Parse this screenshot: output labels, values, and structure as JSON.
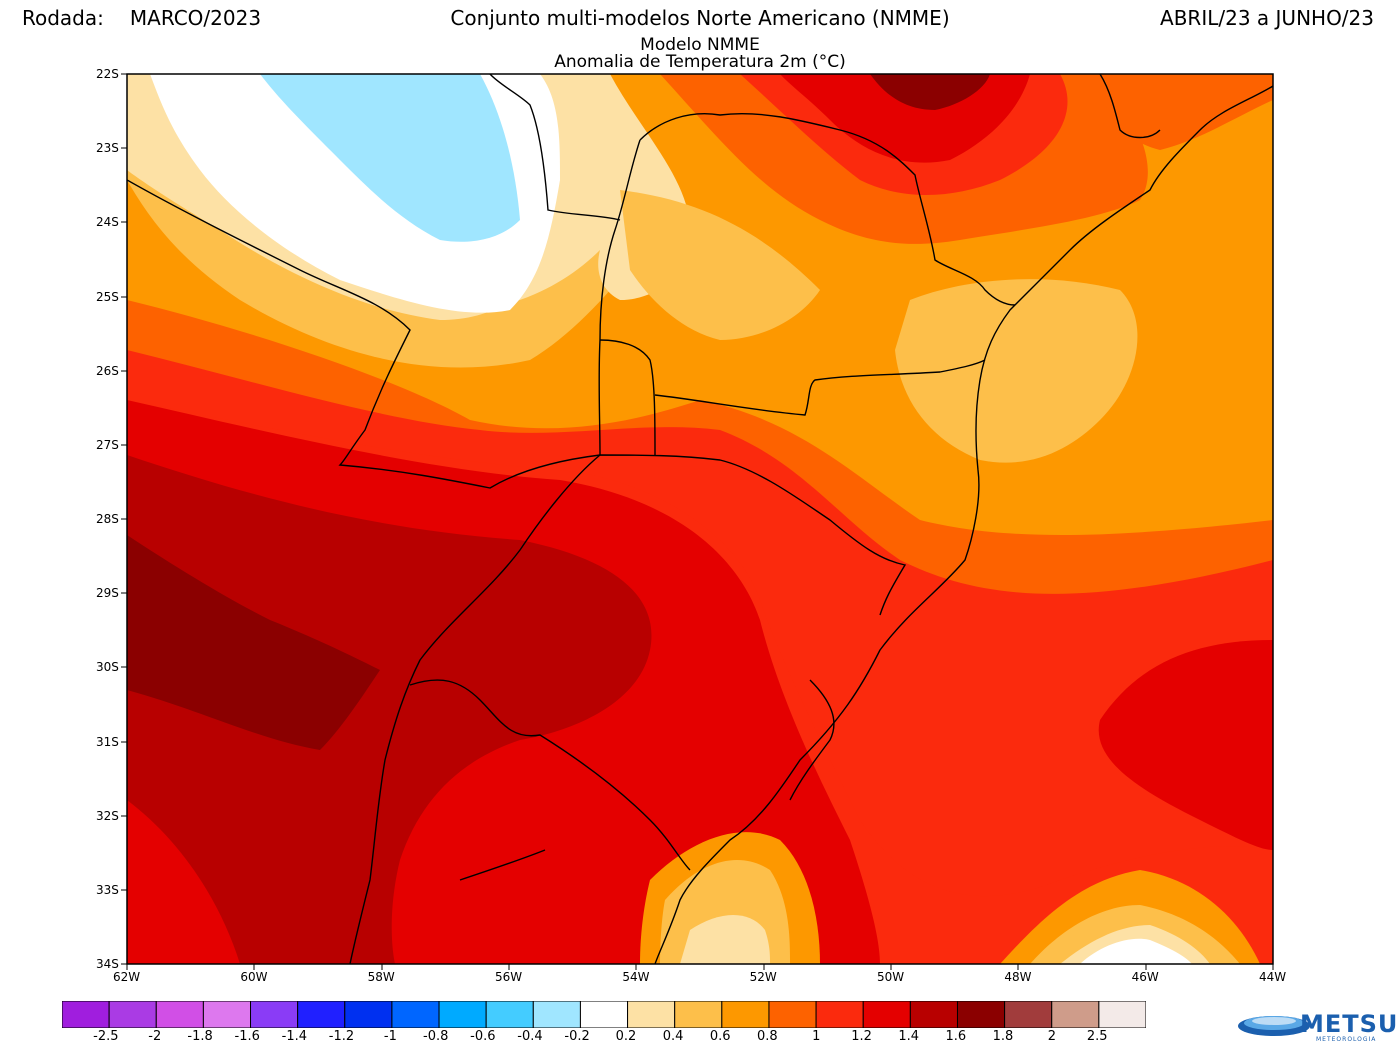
{
  "header": {
    "run_label": "Rodada:",
    "run_value": "MARCO/2023",
    "title": "Conjunto multi-modelos Norte Americano (NMME)",
    "period": "ABRIL/23 a JUNHO/23",
    "subtitle1": "Modelo NMME",
    "subtitle2": "Anomalia de Temperatura 2m (°C)"
  },
  "map": {
    "lat_labels": [
      "22S",
      "23S",
      "24S",
      "25S",
      "26S",
      "27S",
      "28S",
      "29S",
      "30S",
      "31S",
      "32S",
      "33S",
      "34S"
    ],
    "lon_labels": [
      "62W",
      "60W",
      "58W",
      "56W",
      "54W",
      "52W",
      "50W",
      "48W",
      "46W",
      "44W"
    ]
  },
  "legend": {
    "colors": [
      "#a01ede",
      "#aa3be4",
      "#d14fe6",
      "#dd78ee",
      "#8a3cf6",
      "#2020ff",
      "#0030f0",
      "#0066ff",
      "#00aaff",
      "#44ccff",
      "#a0e6ff",
      "#ffffff",
      "#fde1a5",
      "#fdbf4a",
      "#fd9800",
      "#fd6200",
      "#fb2a0d",
      "#e40000",
      "#b80000",
      "#8b0000",
      "#a13c3c",
      "#cf9c8a",
      "#f3eae8"
    ],
    "ticks": [
      "-2.5",
      "-2",
      "-1.8",
      "-1.6",
      "-1.4",
      "-1.2",
      "-1",
      "-0.8",
      "-0.6",
      "-0.4",
      "-0.2",
      "0.2",
      "0.4",
      "0.6",
      "0.8",
      "1",
      "1.2",
      "1.4",
      "1.6",
      "1.8",
      "2",
      "2.5"
    ]
  },
  "logo": {
    "text": "METSUL",
    "subtext": "METEOROLOGIA"
  }
}
